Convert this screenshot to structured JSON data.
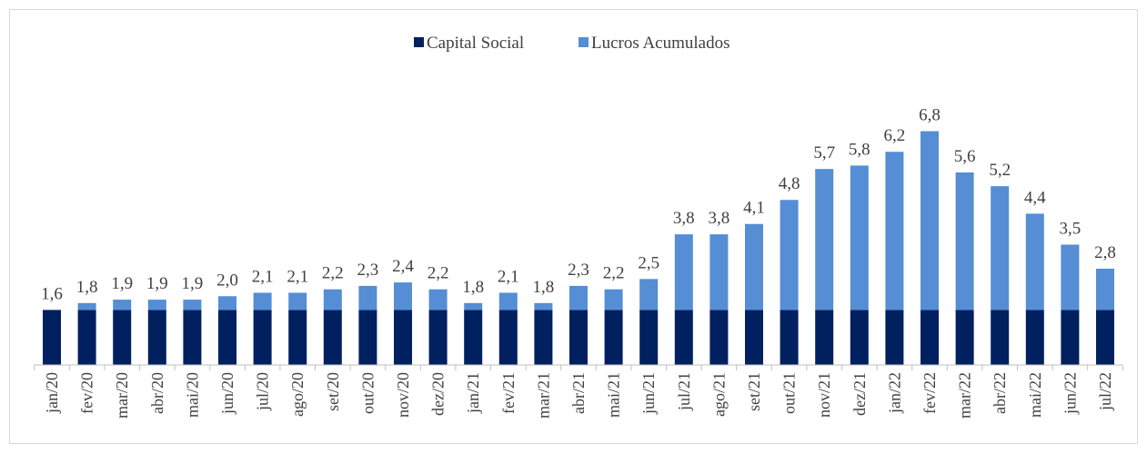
{
  "chart_data": {
    "type": "stacked_bar",
    "categories": [
      "jan/20",
      "fev/20",
      "mar/20",
      "abr/20",
      "mai/20",
      "jun/20",
      "jul/20",
      "ago/20",
      "set/20",
      "out/20",
      "nov/20",
      "dez/20",
      "jan/21",
      "fev/21",
      "mar/21",
      "abr/21",
      "mai/21",
      "jun/21",
      "jul/21",
      "ago/21",
      "set/21",
      "out/21",
      "nov/21",
      "dez/21",
      "jan/22",
      "fev/22",
      "mar/22",
      "abr/22",
      "mai/22",
      "jun/22",
      "jul/22"
    ],
    "series": [
      {
        "name": "Capital Social",
        "color": "#002060",
        "values": [
          1.6,
          1.6,
          1.6,
          1.6,
          1.6,
          1.6,
          1.6,
          1.6,
          1.6,
          1.6,
          1.6,
          1.6,
          1.6,
          1.6,
          1.6,
          1.6,
          1.6,
          1.6,
          1.6,
          1.6,
          1.6,
          1.6,
          1.6,
          1.6,
          1.6,
          1.6,
          1.6,
          1.6,
          1.6,
          1.6,
          1.6
        ]
      },
      {
        "name": "Lucros Acumulados",
        "color": "#558ed5",
        "values": [
          0.0,
          0.2,
          0.3,
          0.3,
          0.3,
          0.4,
          0.5,
          0.5,
          0.6,
          0.7,
          0.8,
          0.6,
          0.2,
          0.5,
          0.2,
          0.7,
          0.6,
          0.9,
          2.2,
          2.2,
          2.5,
          3.2,
          4.1,
          4.2,
          4.6,
          5.2,
          4.0,
          3.6,
          2.8,
          1.9,
          1.2
        ]
      }
    ],
    "totals": [
      1.6,
      1.8,
      1.9,
      1.9,
      1.9,
      2.0,
      2.1,
      2.1,
      2.2,
      2.3,
      2.4,
      2.2,
      1.8,
      2.1,
      1.8,
      2.3,
      2.2,
      2.5,
      3.8,
      3.8,
      4.1,
      4.8,
      5.7,
      5.8,
      6.2,
      6.8,
      5.6,
      5.2,
      4.4,
      3.5,
      2.8
    ],
    "total_labels": [
      "1,6",
      "1,8",
      "1,9",
      "1,9",
      "1,9",
      "2,0",
      "2,1",
      "2,1",
      "2,2",
      "2,3",
      "2,4",
      "2,2",
      "1,8",
      "2,1",
      "1,8",
      "2,3",
      "2,2",
      "2,5",
      "3,8",
      "3,8",
      "4,1",
      "4,8",
      "5,7",
      "5,8",
      "6,2",
      "6,8",
      "5,6",
      "5,2",
      "4,4",
      "3,5",
      "2,8"
    ],
    "ylim": [
      0,
      7.5
    ],
    "legend": "top"
  }
}
